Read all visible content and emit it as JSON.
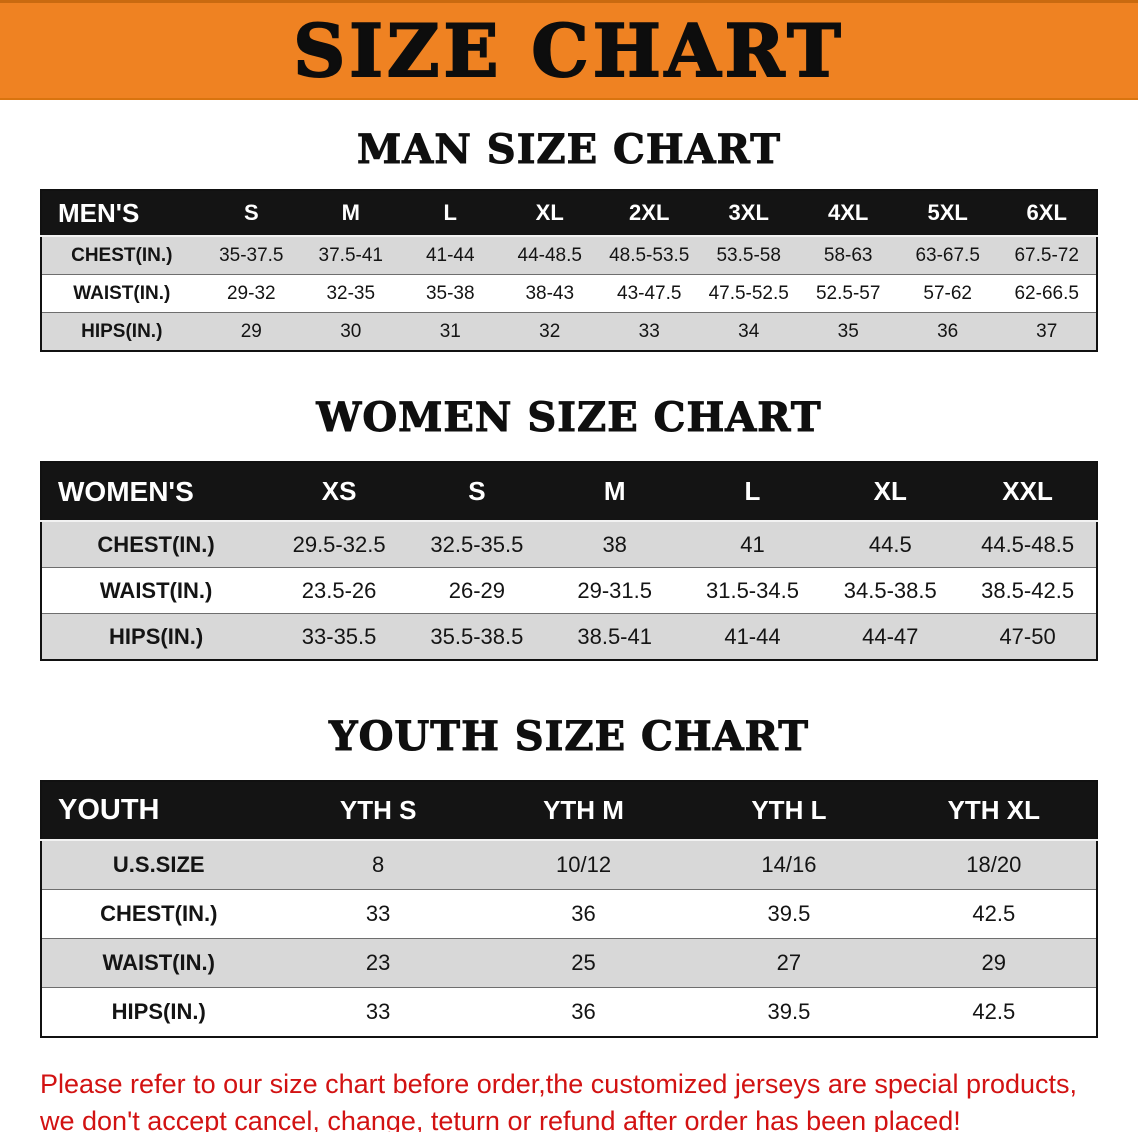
{
  "banner": {
    "title": "SIZE CHART"
  },
  "sections": {
    "men": {
      "heading": "MAN SIZE CHART",
      "header": [
        "MEN'S",
        "S",
        "M",
        "L",
        "XL",
        "2XL",
        "3XL",
        "4XL",
        "5XL",
        "6XL"
      ],
      "rows": [
        [
          "CHEST(IN.)",
          "35-37.5",
          "37.5-41",
          "41-44",
          "44-48.5",
          "48.5-53.5",
          "53.5-58",
          "58-63",
          "63-67.5",
          "67.5-72"
        ],
        [
          "WAIST(IN.)",
          "29-32",
          "32-35",
          "35-38",
          "38-43",
          "43-47.5",
          "47.5-52.5",
          "52.5-57",
          "57-62",
          "62-66.5"
        ],
        [
          "HIPS(IN.)",
          "29",
          "30",
          "31",
          "32",
          "33",
          "34",
          "35",
          "36",
          "37"
        ]
      ]
    },
    "women": {
      "heading": "WOMEN SIZE CHART",
      "header": [
        "WOMEN'S",
        "XS",
        "S",
        "M",
        "L",
        "XL",
        "XXL"
      ],
      "rows": [
        [
          "CHEST(IN.)",
          "29.5-32.5",
          "32.5-35.5",
          "38",
          "41",
          "44.5",
          "44.5-48.5"
        ],
        [
          "WAIST(IN.)",
          "23.5-26",
          "26-29",
          "29-31.5",
          "31.5-34.5",
          "34.5-38.5",
          "38.5-42.5"
        ],
        [
          "HIPS(IN.)",
          "33-35.5",
          "35.5-38.5",
          "38.5-41",
          "41-44",
          "44-47",
          "47-50"
        ]
      ]
    },
    "youth": {
      "heading": "YOUTH SIZE CHART",
      "header": [
        "YOUTH",
        "YTH S",
        "YTH M",
        "YTH L",
        "YTH XL"
      ],
      "rows": [
        [
          "U.S.SIZE",
          "8",
          "10/12",
          "14/16",
          "18/20"
        ],
        [
          "CHEST(IN.)",
          "33",
          "36",
          "39.5",
          "42.5"
        ],
        [
          "WAIST(IN.)",
          "23",
          "25",
          "27",
          "29"
        ],
        [
          "HIPS(IN.)",
          "33",
          "36",
          "39.5",
          "42.5"
        ]
      ]
    }
  },
  "disclaimer": {
    "line1": "Please refer to our size chart before order,the customized jerseys are special products,",
    "line2": "we don't accept cancel, change, teturn or refund after order has been placed!"
  },
  "colors": {
    "banner_orange": "#ef8222",
    "header_black": "#141414",
    "stripe_gray": "#d8d8d8",
    "disclaimer_red": "#d21212"
  }
}
